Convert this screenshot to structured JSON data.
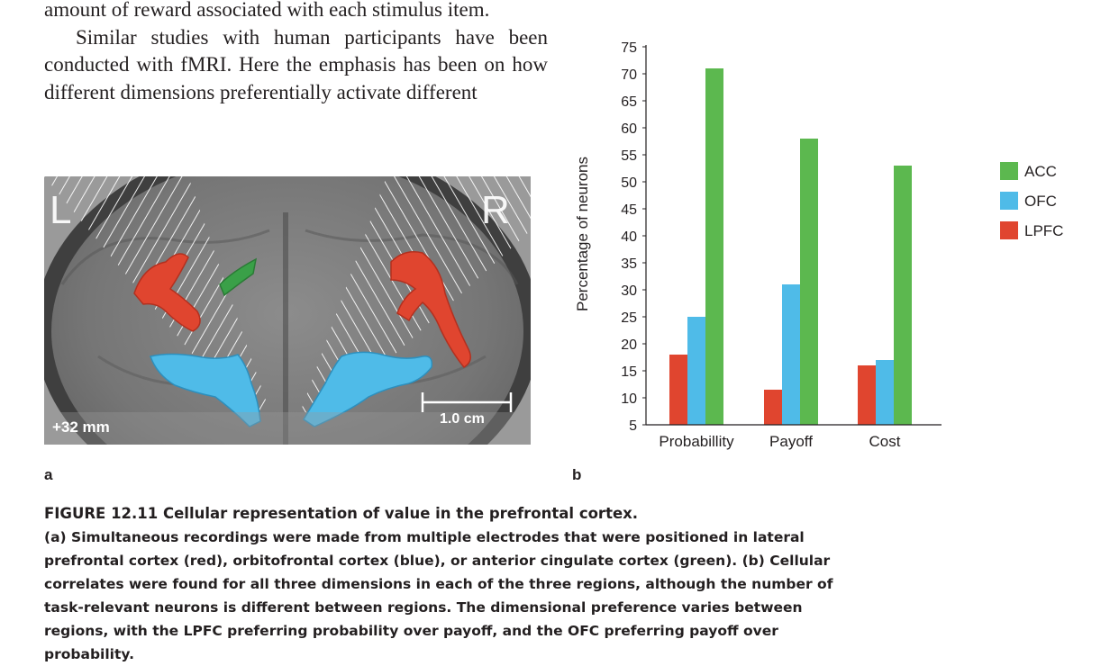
{
  "body_text": {
    "line1": "amount of reward associated with each stimulus item.",
    "paragraph2": "Similar studies with human participants have been conducted with fMRI. Here the emphasis has been on how different dimensions preferentially activate different"
  },
  "figure_a": {
    "label": "a",
    "left_marker": "L",
    "right_marker": "R",
    "slice_label": "+32 mm",
    "scale_label": "1.0 cm"
  },
  "figure_b": {
    "label": "b"
  },
  "chart_data": {
    "type": "bar",
    "categories": [
      "Probabillity",
      "Payoff",
      "Cost"
    ],
    "series": [
      {
        "name": "LPFC",
        "values": [
          18,
          11.5,
          16
        ],
        "color": "#e0452f"
      },
      {
        "name": "OFC",
        "values": [
          25,
          31,
          17
        ],
        "color": "#4fbbe8"
      },
      {
        "name": "ACC",
        "values": [
          71,
          58,
          53
        ],
        "color": "#5cb84f"
      }
    ],
    "legend_order": [
      "ACC",
      "OFC",
      "LPFC"
    ],
    "ylabel": "Percentage of neurons",
    "xlabel": "",
    "ylim": [
      5,
      75
    ],
    "yticks": [
      5,
      10,
      15,
      20,
      25,
      30,
      35,
      40,
      45,
      50,
      55,
      60,
      65,
      70,
      75
    ],
    "legend_position": "right"
  },
  "caption": {
    "title": "FIGURE 12.11  Cellular representation of value in the prefrontal cortex.",
    "part_a_label": "(a)",
    "part_a_text": " Simultaneous recordings were made from multiple electrodes that were positioned in lateral prefrontal cortex (red), orbitofrontal cortex (blue), or anterior cingulate cortex (green). ",
    "part_b_label": "(b)",
    "part_b_text": " Cellular correlates were found for all three dimensions in each of the three regions, although the number of task-relevant neurons is different between regions. The dimensional preference varies between regions, with the LPFC preferring probability over payoff, and the OFC preferring payoff over probability."
  }
}
